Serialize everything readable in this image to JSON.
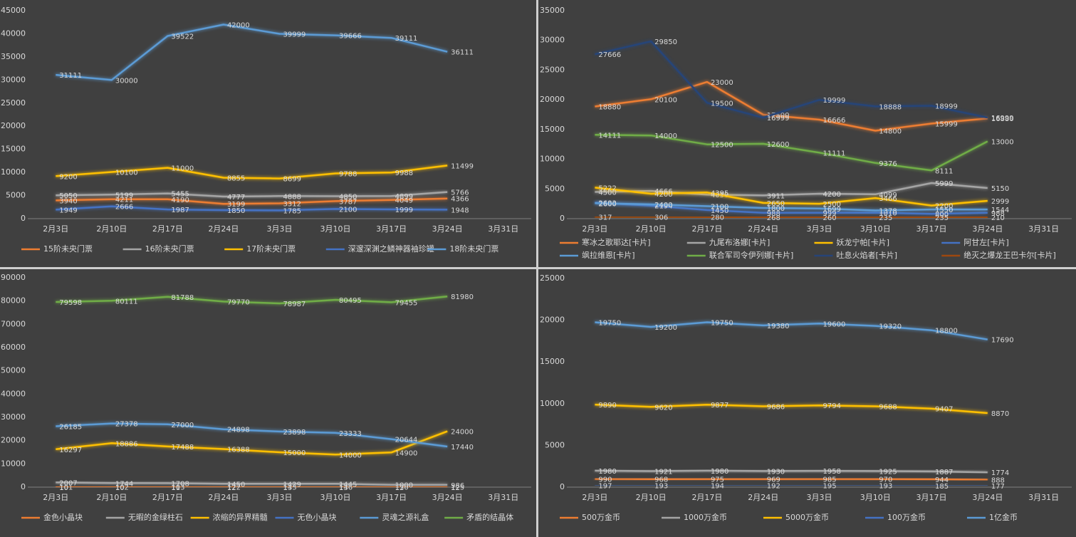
{
  "chart_data": [
    {
      "type": "line",
      "categories": [
        "2月3日",
        "2月10日",
        "2月17日",
        "2月24日",
        "3月3日",
        "3月10日",
        "3月17日",
        "3月24日",
        "3月31日"
      ],
      "ylim": [
        0,
        45000
      ],
      "yticks": [
        0,
        5000,
        10000,
        15000,
        20000,
        25000,
        30000,
        35000,
        40000,
        45000
      ],
      "grid": false,
      "legend": "bottom",
      "series": [
        {
          "name": "15阶未央门票",
          "color": "#ed7d31",
          "values": [
            3940,
            4211,
            4190,
            3199,
            3312,
            3787,
            4049,
            4366,
            null
          ]
        },
        {
          "name": "16阶未央门票",
          "color": "#a5a5a5",
          "values": [
            5050,
            5199,
            5455,
            4777,
            4888,
            4850,
            4899,
            5766,
            null
          ]
        },
        {
          "name": "17阶未央门票",
          "color": "#ffc000",
          "values": [
            9200,
            10100,
            11000,
            8855,
            8699,
            9788,
            9988,
            11499,
            null
          ]
        },
        {
          "name": "深邃深渊之鳞神器袖珍罐",
          "color": "#4472c4",
          "values": [
            1949,
            2666,
            1987,
            1850,
            1785,
            2100,
            1999,
            1948,
            null
          ]
        },
        {
          "name": "18阶未央门票",
          "color": "#5b9bd5",
          "values": [
            31111,
            30000,
            39522,
            42000,
            39999,
            39666,
            39111,
            36111,
            null
          ]
        }
      ]
    },
    {
      "type": "line",
      "categories": [
        "2月3日",
        "2月10日",
        "2月17日",
        "2月24日",
        "3月3日",
        "3月10日",
        "3月17日",
        "3月24日",
        "3月31日"
      ],
      "ylim": [
        0,
        35000
      ],
      "yticks": [
        0,
        5000,
        10000,
        15000,
        20000,
        25000,
        30000,
        35000
      ],
      "grid": false,
      "legend": "bottom",
      "series": [
        {
          "name": "寒冰之歌耶达[卡片]",
          "color": "#ed7d31",
          "values": [
            18880,
            20100,
            23000,
            17500,
            16666,
            14800,
            15999,
            16880,
            null
          ]
        },
        {
          "name": "九尾布洛娜[卡片]",
          "color": "#a5a5a5",
          "values": [
            4500,
            4666,
            4050,
            3911,
            4200,
            4099,
            5999,
            5150,
            null
          ]
        },
        {
          "name": "妖龙宁帕[卡片]",
          "color": "#ffc000",
          "values": [
            5222,
            4200,
            4395,
            2650,
            2500,
            3466,
            2200,
            2999,
            null
          ]
        },
        {
          "name": "阿甘左[卡片]",
          "color": "#4472c4",
          "values": [
            2683,
            2194,
            1450,
            988,
            999,
            1010,
            800,
            988,
            null
          ]
        },
        {
          "name": "飒拉维恩[卡片]",
          "color": "#5b9bd5",
          "values": [
            2600,
            2400,
            2100,
            1800,
            1699,
            1378,
            1550,
            1544,
            null
          ]
        },
        {
          "name": "联合军司令伊列娜[卡片]",
          "color": "#70ad47",
          "values": [
            14111,
            14000,
            12500,
            12600,
            11111,
            9376,
            8111,
            13000,
            null
          ]
        },
        {
          "name": "吐息火焰者[卡片]",
          "color": "#264478",
          "values": [
            27666,
            29850,
            19500,
            16999,
            19999,
            18888,
            18999,
            16999,
            null
          ]
        },
        {
          "name": "绝灭之爆龙王巴卡尔[卡片]",
          "color": "#9e480e",
          "values": [
            317,
            306,
            280,
            268,
            260,
            235,
            235,
            210,
            null
          ]
        }
      ]
    },
    {
      "type": "line",
      "categories": [
        "2月3日",
        "2月10日",
        "2月17日",
        "2月24日",
        "3月3日",
        "3月10日",
        "3月17日",
        "3月24日",
        "3月31日"
      ],
      "ylim": [
        0,
        90000
      ],
      "yticks": [
        0,
        10000,
        20000,
        30000,
        40000,
        50000,
        60000,
        70000,
        80000,
        90000
      ],
      "grid": false,
      "legend": "bottom",
      "series": [
        {
          "name": "金色小晶块",
          "color": "#ed7d31",
          "values": [
            101,
            102,
            103,
            122,
            143,
            146,
            130,
            125,
            null
          ]
        },
        {
          "name": "无暇的金绿柱石",
          "color": "#a5a5a5",
          "values": [
            2007,
            1744,
            1708,
            1450,
            1429,
            1445,
            1000,
            986,
            null
          ]
        },
        {
          "name": "浓缩的异界精髓",
          "color": "#ffc000",
          "values": [
            16297,
            18886,
            17488,
            16388,
            15000,
            14000,
            14900,
            24000,
            null
          ]
        },
        {
          "name": "无色小晶块",
          "color": "#4472c4",
          "values": [
            10,
            10,
            11,
            12,
            13,
            13,
            12,
            12,
            null
          ]
        },
        {
          "name": "灵魂之源礼盒",
          "color": "#5b9bd5",
          "values": [
            26185,
            27378,
            27000,
            24898,
            23898,
            23333,
            20644,
            17440,
            null
          ]
        },
        {
          "name": "矛盾的结晶体",
          "color": "#70ad47",
          "values": [
            79598,
            80111,
            81788,
            79770,
            78987,
            80495,
            79455,
            81980,
            null
          ]
        }
      ]
    },
    {
      "type": "line",
      "categories": [
        "2月3日",
        "2月10日",
        "2月17日",
        "2月24日",
        "3月3日",
        "3月10日",
        "3月17日",
        "3月24日",
        "3月31日"
      ],
      "ylim": [
        0,
        25000
      ],
      "yticks": [
        0,
        5000,
        10000,
        15000,
        20000,
        25000
      ],
      "grid": false,
      "legend": "bottom",
      "series": [
        {
          "name": "500万金币",
          "color": "#ed7d31",
          "values": [
            990,
            968,
            975,
            969,
            985,
            970,
            944,
            888,
            null
          ]
        },
        {
          "name": "1000万金币",
          "color": "#a5a5a5",
          "values": [
            1980,
            1921,
            1980,
            1930,
            1958,
            1925,
            1887,
            1774,
            null
          ]
        },
        {
          "name": "5000万金币",
          "color": "#ffc000",
          "values": [
            9890,
            9620,
            9877,
            9686,
            9794,
            9688,
            9407,
            8870,
            null
          ]
        },
        {
          "name": "100万金币",
          "color": "#4472c4",
          "values": [
            197,
            193,
            194,
            192,
            195,
            193,
            185,
            177,
            null
          ]
        },
        {
          "name": "1亿金币",
          "color": "#5b9bd5",
          "values": [
            19750,
            19200,
            19750,
            19380,
            19600,
            19320,
            18800,
            17690,
            null
          ]
        }
      ]
    }
  ]
}
